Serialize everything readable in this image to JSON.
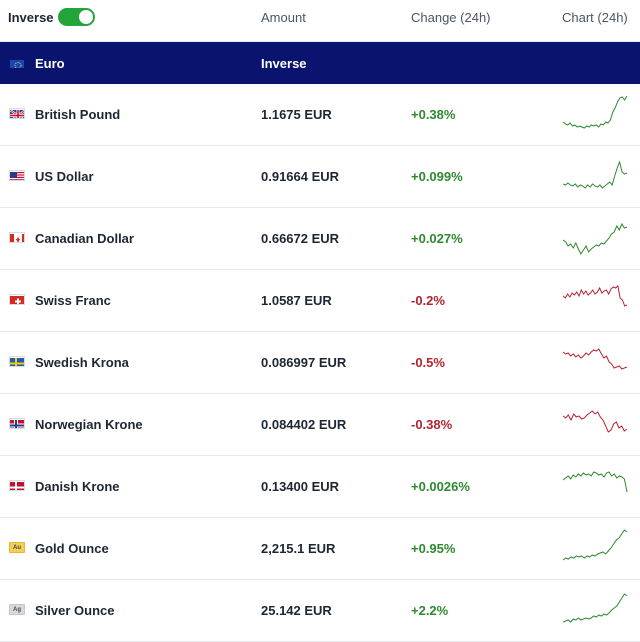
{
  "header": {
    "inverse_label": "Inverse",
    "amount_label": "Amount",
    "change_label": "Change (24h)",
    "chart_label": "Chart (24h)"
  },
  "base": {
    "name": "Euro",
    "inverse": "Inverse"
  },
  "colors": {
    "up": "#2e8a2f",
    "down": "#b32431",
    "navy": "#0a146e",
    "toggle": "#23a53b"
  },
  "rows": [
    {
      "name": "British Pound",
      "amount": "1.1675 EUR",
      "change": "+0.38%",
      "dir": "up",
      "icon": "uk-flag-icon"
    },
    {
      "name": "US Dollar",
      "amount": "0.91664 EUR",
      "change": "+0.099%",
      "dir": "up",
      "icon": "us-flag-icon"
    },
    {
      "name": "Canadian Dollar",
      "amount": "0.66672 EUR",
      "change": "+0.027%",
      "dir": "up",
      "icon": "canada-flag-icon"
    },
    {
      "name": "Swiss Franc",
      "amount": "1.0587 EUR",
      "change": "-0.2%",
      "dir": "down",
      "icon": "swiss-flag-icon"
    },
    {
      "name": "Swedish Krona",
      "amount": "0.086997 EUR",
      "change": "-0.5%",
      "dir": "down",
      "icon": "sweden-flag-icon"
    },
    {
      "name": "Norwegian Krone",
      "amount": "0.084402 EUR",
      "change": "-0.38%",
      "dir": "down",
      "icon": "norway-flag-icon"
    },
    {
      "name": "Danish Krone",
      "amount": "0.13400 EUR",
      "change": "+0.0026%",
      "dir": "up",
      "icon": "denmark-flag-icon"
    },
    {
      "name": "Gold Ounce",
      "amount": "2,215.1 EUR",
      "change": "+0.95%",
      "dir": "up",
      "icon": "gold-icon",
      "symbol": "Au"
    },
    {
      "name": "Silver Ounce",
      "amount": "25.142 EUR",
      "change": "+2.2%",
      "dir": "up",
      "icon": "silver-icon",
      "symbol": "Ag"
    }
  ]
}
